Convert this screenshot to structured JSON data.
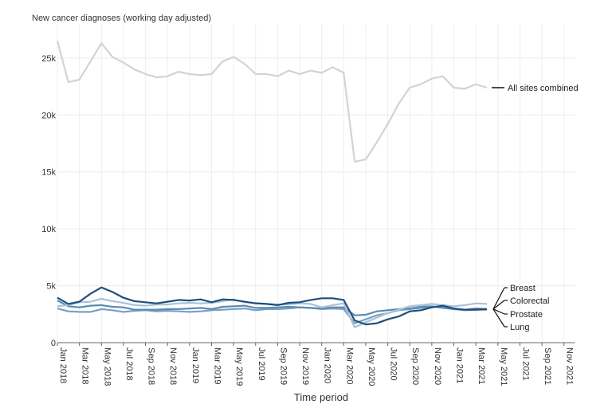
{
  "chart_data": {
    "type": "line",
    "title": "",
    "ylabel": "New cancer diagnoses (working day adjusted)",
    "xlabel": "Time period",
    "ylim": [
      0,
      28000
    ],
    "yticks": [
      0,
      5000,
      10000,
      15000,
      20000,
      25000
    ],
    "ytick_labels": [
      "0",
      "5k",
      "10k",
      "15k",
      "20k",
      "25k"
    ],
    "xtick_labels": [
      "Jan 2018",
      "Mar 2018",
      "May 2018",
      "Jul 2018",
      "Sep 2018",
      "Nov 2018",
      "Jan 2019",
      "Mar 2019",
      "May 2019",
      "Jul 2019",
      "Sep 2019",
      "Nov 2019",
      "Jan 2020",
      "Mar 2020",
      "May 2020",
      "Jul 2020",
      "Sep 2020",
      "Nov 2020",
      "Jan 2021",
      "Mar 2021",
      "May 2021",
      "Jul 2021",
      "Sep 2021",
      "Nov 2021"
    ],
    "x_range_months": [
      0,
      47
    ],
    "grid": true,
    "series": [
      {
        "name": "All sites combined",
        "color": "#d3d3d3",
        "values": [
          26500,
          22900,
          23100,
          24700,
          26300,
          25100,
          24600,
          24000,
          23600,
          23300,
          23400,
          23800,
          23600,
          23500,
          23600,
          24700,
          25100,
          24500,
          23600,
          23600,
          23400,
          23900,
          23600,
          23900,
          23700,
          24200,
          23700,
          15900,
          16100,
          17600,
          19200,
          21000,
          22400,
          22700,
          23200,
          23400,
          22400,
          22300,
          22700,
          22400
        ]
      },
      {
        "name": "Breast",
        "color": "#1f4e7d",
        "values": [
          3950,
          3400,
          3600,
          4300,
          4850,
          4450,
          3950,
          3650,
          3550,
          3450,
          3600,
          3750,
          3700,
          3800,
          3550,
          3800,
          3750,
          3600,
          3450,
          3400,
          3300,
          3500,
          3550,
          3750,
          3900,
          3900,
          3750,
          1950,
          1600,
          1700,
          2050,
          2300,
          2750,
          2850,
          3100,
          3250,
          3000,
          2900,
          2900,
          2950
        ]
      },
      {
        "name": "Colorectal",
        "color": "#a9c3d9",
        "values": [
          3200,
          3300,
          3550,
          3600,
          3850,
          3650,
          3500,
          3300,
          3250,
          3350,
          3350,
          3450,
          3500,
          3450,
          3500,
          3650,
          3800,
          3550,
          3500,
          3400,
          3350,
          3350,
          3450,
          3400,
          3100,
          3300,
          3450,
          1350,
          1800,
          2200,
          2600,
          2900,
          3200,
          3300,
          3400,
          3300,
          3200,
          3300,
          3450,
          3400
        ]
      },
      {
        "name": "Prostate",
        "color": "#5b8cb2",
        "values": [
          3700,
          3200,
          3100,
          3250,
          3300,
          3150,
          3100,
          2900,
          2900,
          2900,
          2950,
          2950,
          3000,
          3050,
          2950,
          3150,
          3200,
          3250,
          3050,
          3050,
          3100,
          3150,
          3100,
          3050,
          3000,
          3100,
          3100,
          2400,
          2450,
          2750,
          2850,
          2950,
          3000,
          3150,
          3200,
          3050,
          2950,
          2900,
          3000,
          2950
        ]
      },
      {
        "name": "Lung",
        "color": "#7aa0c4",
        "values": [
          3000,
          2750,
          2700,
          2700,
          2950,
          2850,
          2700,
          2800,
          2850,
          2750,
          2800,
          2750,
          2700,
          2750,
          2850,
          2900,
          2950,
          3000,
          2850,
          2950,
          2950,
          3000,
          3100,
          3050,
          2950,
          3000,
          2950,
          1700,
          2050,
          2400,
          2600,
          2850,
          2950,
          3050,
          3150,
          3100,
          2950,
          2850,
          2900,
          2900
        ]
      }
    ]
  }
}
